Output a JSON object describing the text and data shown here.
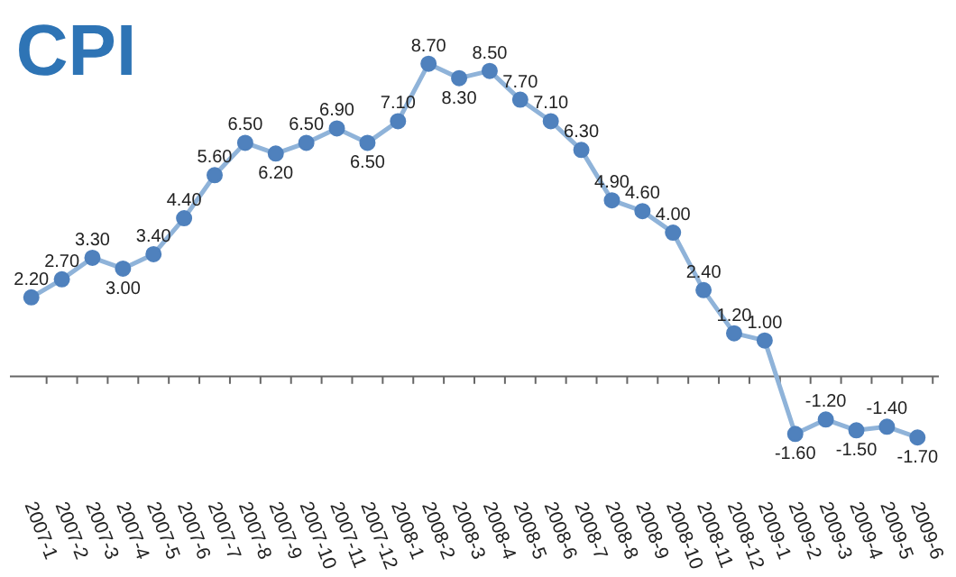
{
  "chart_data": {
    "type": "line",
    "title": "CPI",
    "categories": [
      "2007-1",
      "2007-2",
      "2007-3",
      "2007-4",
      "2007-5",
      "2007-6",
      "2007-7",
      "2007-8",
      "2007-9",
      "2007-10",
      "2007-11",
      "2007-12",
      "2008-1",
      "2008-2",
      "2008-3",
      "2008-4",
      "2008-5",
      "2008-6",
      "2008-7",
      "2008-8",
      "2008-9",
      "2008-10",
      "2008-11",
      "2008-12",
      "2009-1",
      "2009-2",
      "2009-3",
      "2009-4",
      "2009-5",
      "2009-6"
    ],
    "series": [
      {
        "color": "#4f81bd",
        "values": [
          2.2,
          2.7,
          3.3,
          3.0,
          3.4,
          4.4,
          5.6,
          6.5,
          6.2,
          6.5,
          6.9,
          6.5,
          7.1,
          8.7,
          8.3,
          8.5,
          7.7,
          7.1,
          6.3,
          4.9,
          4.6,
          4.0,
          2.4,
          1.2,
          1.0,
          -1.6,
          -1.2,
          -1.5,
          -1.4,
          -1.7
        ],
        "value_labels": [
          "2.20",
          "2.70",
          "3.30",
          "3.00",
          "3.40",
          "4.40",
          "5.60",
          "6.50",
          "6.20",
          "6.50",
          "6.90",
          "6.50",
          "7.10",
          "8.70",
          "8.30",
          "8.50",
          "7.70",
          "7.10",
          "6.30",
          "4.90",
          "4.60",
          "4.00",
          "2.40",
          "1.20",
          "1.00",
          "-1.60",
          "-1.20",
          "-1.50",
          "-1.40",
          "-1.70"
        ]
      }
    ],
    "marker": "circle",
    "line_style": "solid",
    "tick_labels": "x"
  }
}
